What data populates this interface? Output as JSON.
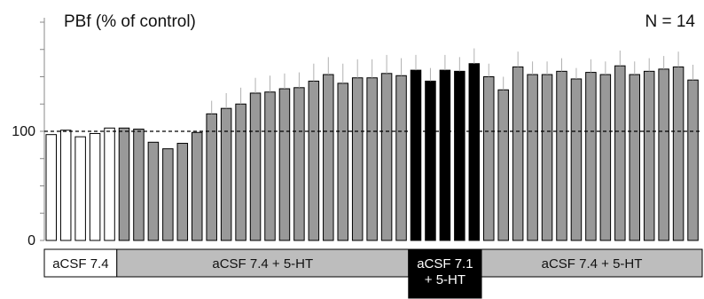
{
  "chart_data": {
    "type": "bar",
    "ylabel": "PBf (% of control)",
    "n_label": "N = 14",
    "yticks": [
      {
        "value": 0,
        "label": "0"
      },
      {
        "value": 100,
        "label": "100"
      }
    ],
    "ylim": [
      0,
      200
    ],
    "reference_line": 100,
    "bar_styles": {
      "control": {
        "fill": "#ffffff",
        "stroke": "#000000"
      },
      "serotonin": {
        "fill": "#999999",
        "stroke": "#000000"
      },
      "acid": {
        "fill": "#000000",
        "stroke": "#000000"
      }
    },
    "values": [
      97,
      101,
      95,
      98,
      103,
      103,
      102,
      90,
      84,
      89,
      99,
      116,
      121,
      125,
      135,
      136,
      139,
      140,
      146,
      152,
      144,
      149,
      149,
      153,
      151,
      156,
      146,
      156,
      155,
      162,
      150,
      138,
      159,
      152,
      152,
      155,
      148,
      154,
      152,
      160,
      152,
      155,
      157,
      159,
      147
    ],
    "errors": [
      0,
      0,
      0,
      0,
      0,
      0,
      0,
      0,
      0,
      0,
      0,
      12,
      14,
      15,
      14,
      15,
      14,
      14,
      16,
      16,
      18,
      17,
      17,
      17,
      16,
      14,
      12,
      14,
      13,
      14,
      12,
      12,
      14,
      12,
      12,
      12,
      10,
      12,
      12,
      14,
      12,
      12,
      12,
      14,
      14
    ],
    "groups": [
      "control",
      "control",
      "control",
      "control",
      "control",
      "serotonin",
      "serotonin",
      "serotonin",
      "serotonin",
      "serotonin",
      "serotonin",
      "serotonin",
      "serotonin",
      "serotonin",
      "serotonin",
      "serotonin",
      "serotonin",
      "serotonin",
      "serotonin",
      "serotonin",
      "serotonin",
      "serotonin",
      "serotonin",
      "serotonin",
      "serotonin",
      "acid",
      "acid",
      "acid",
      "acid",
      "acid",
      "serotonin",
      "serotonin",
      "serotonin",
      "serotonin",
      "serotonin",
      "serotonin",
      "serotonin",
      "serotonin",
      "serotonin",
      "serotonin",
      "serotonin",
      "serotonin",
      "serotonin",
      "serotonin",
      "serotonin"
    ],
    "conditions": [
      {
        "lines": [
          "aCSF 7.4"
        ],
        "from_bar": 0,
        "to_bar": 4,
        "fill": "#ffffff",
        "text_color": "#111111"
      },
      {
        "lines": [
          "aCSF 7.4 + 5-HT"
        ],
        "from_bar": 5,
        "to_bar": 24,
        "fill": "#bdbdbd",
        "text_color": "#111111"
      },
      {
        "lines": [
          "aCSF 7.1",
          "+ 5-HT"
        ],
        "from_bar": 25,
        "to_bar": 29,
        "fill": "#000000",
        "text_color": "#ffffff"
      },
      {
        "lines": [
          "aCSF 7.4 + 5-HT"
        ],
        "from_bar": 30,
        "to_bar": 44,
        "fill": "#bdbdbd",
        "text_color": "#111111"
      }
    ]
  }
}
